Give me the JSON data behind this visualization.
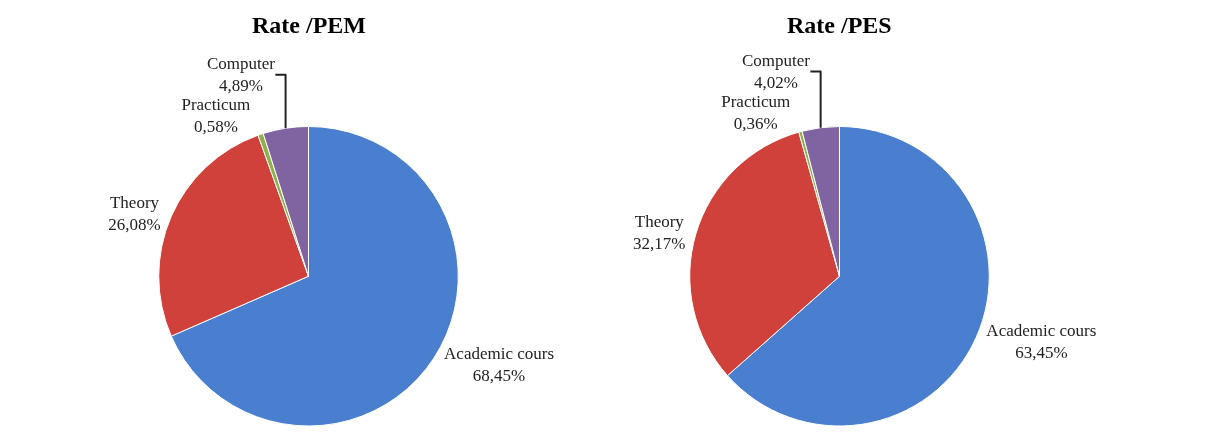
{
  "chart_data": [
    {
      "type": "pie",
      "title": "Rate /PEM",
      "categories": [
        "Academic cours",
        "Theory",
        "Practicum",
        "Computer"
      ],
      "values": [
        68.45,
        26.08,
        0.58,
        4.89
      ],
      "value_labels": [
        "68,45%",
        "26,08%",
        "0,58%",
        "4,89%"
      ],
      "colors": [
        "#4a7fd0",
        "#d0413b",
        "#8fb048",
        "#8064a2"
      ]
    },
    {
      "type": "pie",
      "title": "Rate /PES",
      "categories": [
        "Academic cours",
        "Theory",
        "Practicum",
        "Computer"
      ],
      "values": [
        63.45,
        32.17,
        0.36,
        4.02
      ],
      "value_labels": [
        "63,45%",
        "32,17%",
        "0,36%",
        "4,02%"
      ],
      "colors": [
        "#4a7fd0",
        "#d0413b",
        "#8fb048",
        "#8064a2"
      ]
    }
  ]
}
